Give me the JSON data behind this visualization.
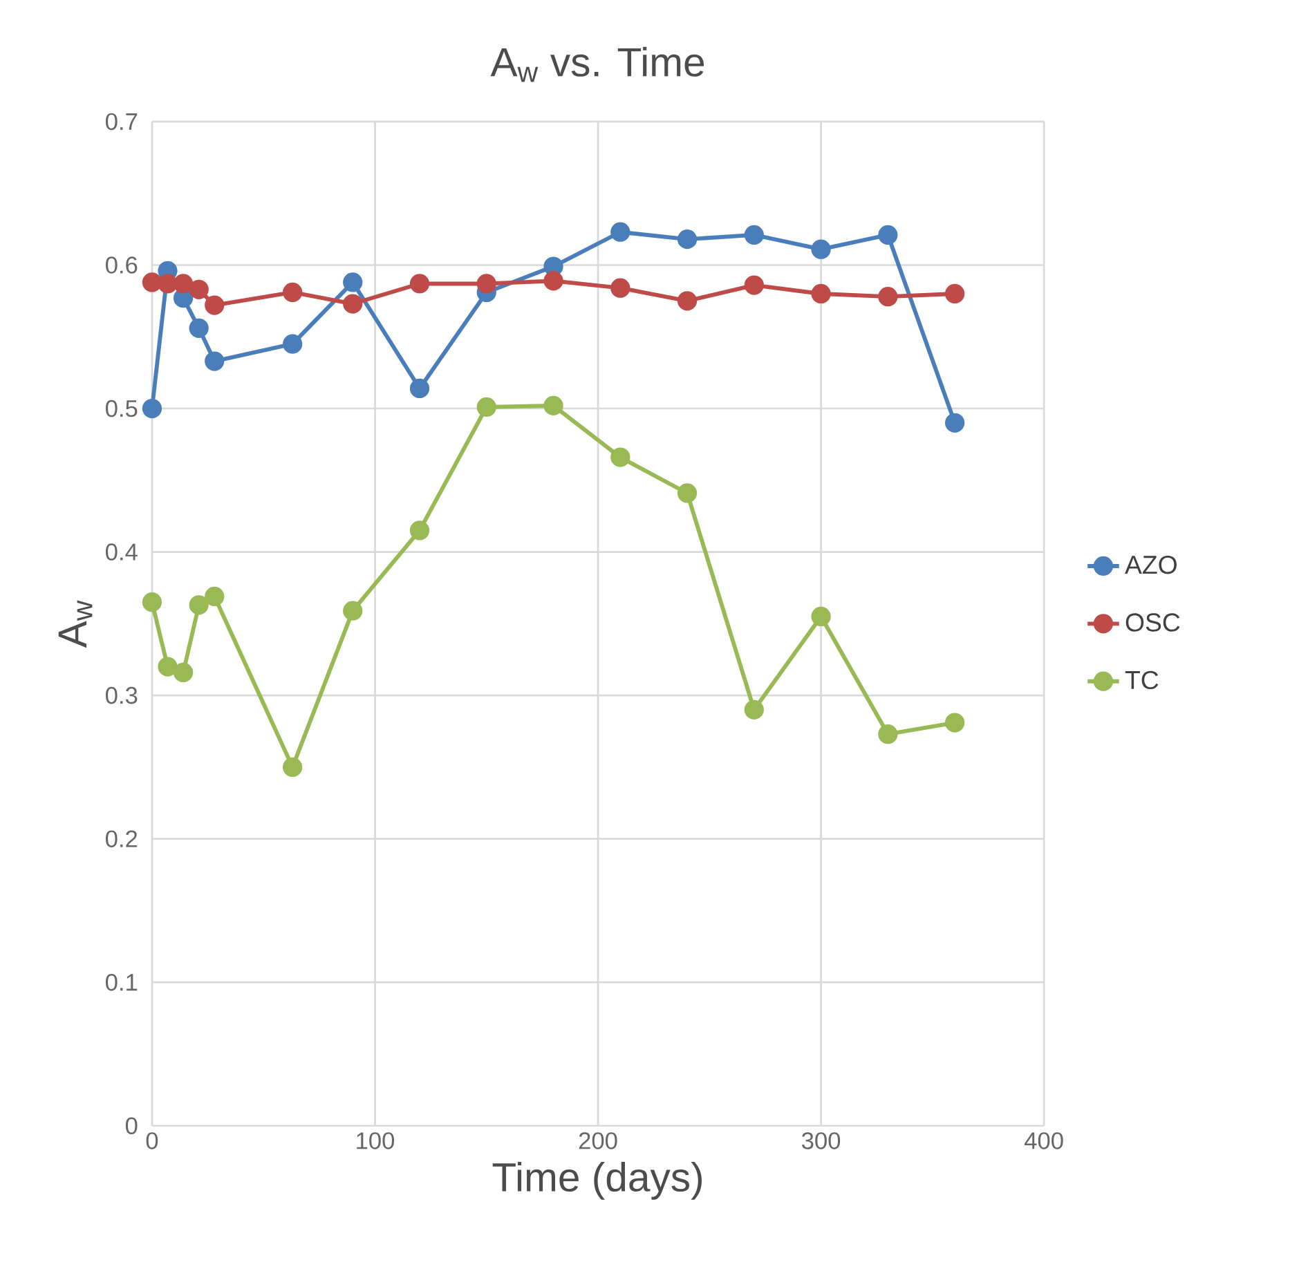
{
  "chart_data": {
    "type": "line",
    "title": "A$_{w}$ vs. Time",
    "xlabel": "Time (days)",
    "ylabel": "A$_{w}$",
    "xlim": [
      0,
      400
    ],
    "xticks": [
      0,
      100,
      200,
      300,
      400
    ],
    "ylim": [
      0,
      0.7
    ],
    "yticks": [
      0,
      0.1,
      0.2,
      0.3,
      0.4,
      0.5,
      0.6,
      0.7
    ],
    "grid": true,
    "legend": "right",
    "marker": "circle",
    "line_style": "solid",
    "x": [
      0,
      7,
      14,
      21,
      28,
      63,
      90,
      120,
      150,
      180,
      210,
      240,
      270,
      300,
      330,
      360
    ],
    "series": [
      {
        "name": "AZO",
        "color": "#4a7ebb",
        "values": [
          0.5,
          0.596,
          0.577,
          0.556,
          0.533,
          0.545,
          0.588,
          0.514,
          0.581,
          0.599,
          0.623,
          0.618,
          0.621,
          0.611,
          0.621,
          0.49
        ]
      },
      {
        "name": "OSC",
        "color": "#be4b48",
        "values": [
          0.588,
          0.587,
          0.587,
          0.583,
          0.572,
          0.581,
          0.573,
          0.587,
          0.587,
          0.589,
          0.584,
          0.575,
          0.586,
          0.58,
          0.578,
          0.58
        ]
      },
      {
        "name": "TC",
        "color": "#98b954",
        "values": [
          0.365,
          0.32,
          0.316,
          0.363,
          0.369,
          0.25,
          0.359,
          0.415,
          0.501,
          0.502,
          0.466,
          0.441,
          0.29,
          0.355,
          0.273,
          0.281
        ]
      }
    ]
  }
}
